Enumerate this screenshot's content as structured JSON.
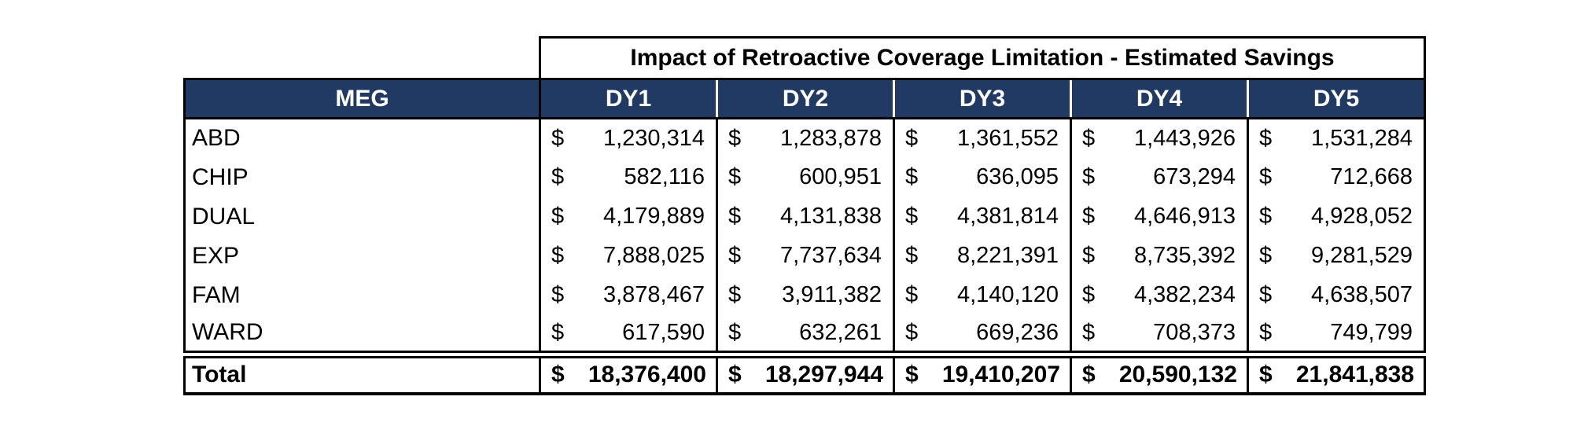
{
  "chart_data": {
    "type": "table",
    "title": "Impact of Retroactive Coverage Limitation - Estimated Savings",
    "currency": "$",
    "columns": [
      "MEG",
      "DY1",
      "DY2",
      "DY3",
      "DY4",
      "DY5"
    ],
    "meg_header": "MEG",
    "dy_headers": [
      "DY1",
      "DY2",
      "DY3",
      "DY4",
      "DY5"
    ],
    "rows": [
      {
        "label": "ABD",
        "values": [
          "1,230,314",
          "1,283,878",
          "1,361,552",
          "1,443,926",
          "1,531,284"
        ]
      },
      {
        "label": "CHIP",
        "values": [
          "582,116",
          "600,951",
          "636,095",
          "673,294",
          "712,668"
        ]
      },
      {
        "label": "DUAL",
        "values": [
          "4,179,889",
          "4,131,838",
          "4,381,814",
          "4,646,913",
          "4,928,052"
        ]
      },
      {
        "label": "EXP",
        "values": [
          "7,888,025",
          "7,737,634",
          "8,221,391",
          "8,735,392",
          "9,281,529"
        ]
      },
      {
        "label": "FAM",
        "values": [
          "3,878,467",
          "3,911,382",
          "4,140,120",
          "4,382,234",
          "4,638,507"
        ]
      },
      {
        "label": "WARD",
        "values": [
          "617,590",
          "632,261",
          "669,236",
          "708,373",
          "749,799"
        ]
      }
    ],
    "total": {
      "label": "Total",
      "values": [
        "18,376,400",
        "18,297,944",
        "19,410,207",
        "20,590,132",
        "21,841,838"
      ]
    },
    "layout": {
      "header_bg": "#203A63",
      "header_text_color": "#ffffff",
      "border_color": "#000000",
      "number_format": "accounting",
      "total_separator": "double-line"
    }
  }
}
